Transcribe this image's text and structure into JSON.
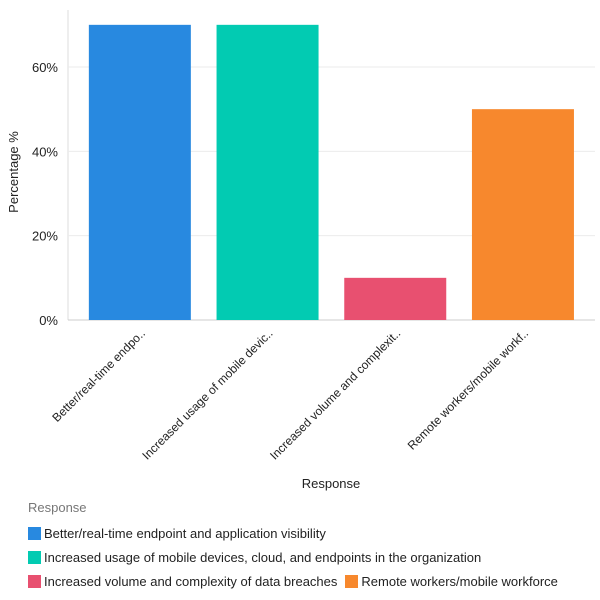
{
  "chart_data": {
    "type": "bar",
    "categories": [
      "Better/real-time endpoint and application visibility",
      "Increased usage of mobile devices, cloud, and endpoints in the organization",
      "Increased volume and complexity of data breaches",
      "Remote workers/mobile workforce"
    ],
    "tick_labels": [
      "Better/real-time endpo..",
      "Increased usage of mobile devic..",
      "Increased volume and complexit..",
      "Remote workers/mobile workf.."
    ],
    "values": [
      70,
      70,
      10,
      50
    ],
    "colors": [
      "#2889e0",
      "#02cbb2",
      "#e85070",
      "#f7882d"
    ],
    "xlabel": "Response",
    "ylabel": "Percentage %",
    "ylim": [
      0,
      75
    ],
    "yticks": [
      0,
      20,
      40,
      60
    ],
    "ytick_labels": [
      "0%",
      "20%",
      "40%",
      "60%"
    ],
    "grid": true,
    "legend_title": "Response",
    "legend_placement": "bottom"
  }
}
